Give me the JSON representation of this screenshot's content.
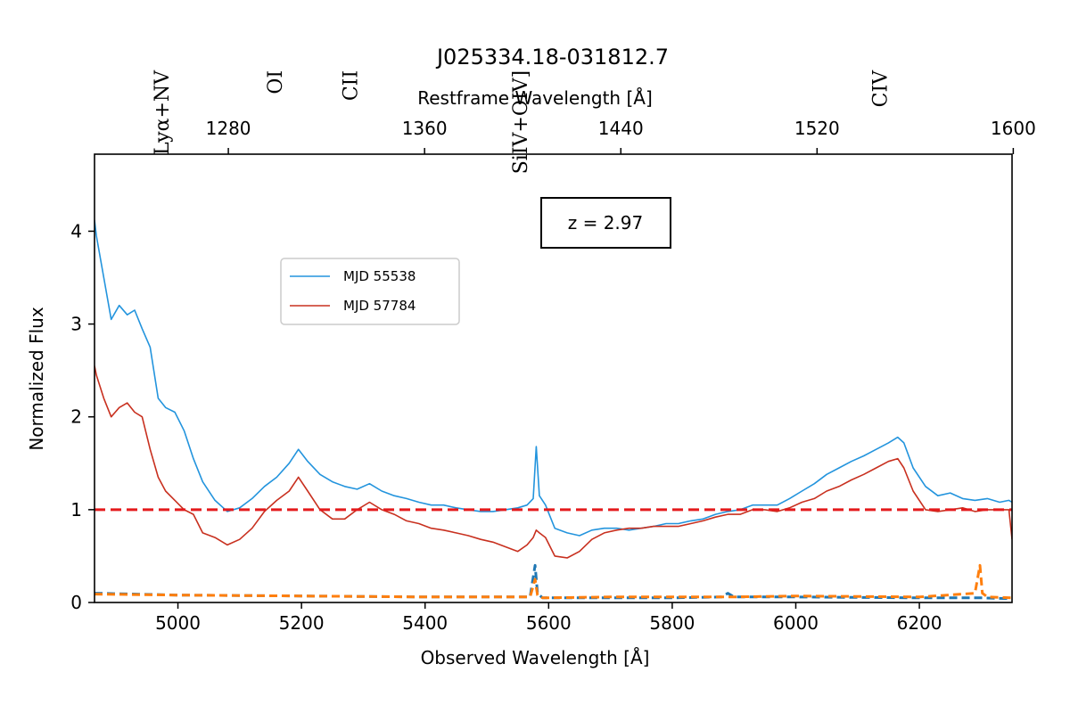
{
  "chart_data": {
    "type": "line",
    "title": "J025334.18-031812.7",
    "xlabel": "Observed Wavelength [Å]",
    "ylabel": "Normalized Flux",
    "top_xlabel": "Restframe Wavelength [Å]",
    "xlim": [
      4865,
      6350
    ],
    "ylim": [
      0,
      4.83
    ],
    "xticks": [
      5000,
      5200,
      5400,
      5600,
      5800,
      6000,
      6200
    ],
    "yticks": [
      0,
      1,
      2,
      3,
      4
    ],
    "top_xticks": [
      1280,
      1360,
      1440,
      1520,
      1600
    ],
    "redshift": 2.97,
    "redshift_label": "z = 2.97",
    "reference_line": {
      "y": 1,
      "color": "#e41a1c",
      "style": "dashed"
    },
    "line_labels": [
      {
        "text": "Lyα+NV",
        "x": 4985,
        "y": 4.6
      },
      {
        "text": "OI",
        "x": 5168,
        "y": 4.6
      },
      {
        "text": "CII",
        "x": 5290,
        "y": 4.6
      },
      {
        "text": "SiIV+OIV]",
        "x": 5565,
        "y": 4.6
      },
      {
        "text": "CIV",
        "x": 6147,
        "y": 4.6
      }
    ],
    "legend": {
      "position": "upper-center-left",
      "entries": [
        "MJD 55538",
        "MJD 57784"
      ]
    },
    "series": [
      {
        "name": "MJD 55538",
        "color": "#2394dd",
        "x": [
          4865,
          4868,
          4880,
          4892,
          4905,
          4918,
          4930,
          4942,
          4955,
          4968,
          4980,
          4995,
          5010,
          5025,
          5040,
          5060,
          5080,
          5100,
          5120,
          5140,
          5160,
          5180,
          5195,
          5210,
          5230,
          5250,
          5270,
          5290,
          5310,
          5330,
          5350,
          5370,
          5390,
          5410,
          5430,
          5450,
          5470,
          5490,
          5510,
          5530,
          5550,
          5565,
          5575,
          5580,
          5585,
          5595,
          5610,
          5630,
          5650,
          5670,
          5690,
          5710,
          5730,
          5750,
          5770,
          5790,
          5810,
          5830,
          5850,
          5870,
          5890,
          5910,
          5930,
          5950,
          5970,
          5990,
          6010,
          6030,
          6050,
          6070,
          6090,
          6110,
          6130,
          6150,
          6165,
          6175,
          6190,
          6210,
          6230,
          6250,
          6270,
          6290,
          6310,
          6330,
          6345,
          6350
        ],
        "y": [
          4.12,
          3.95,
          3.5,
          3.05,
          3.2,
          3.1,
          3.15,
          2.95,
          2.75,
          2.2,
          2.1,
          2.05,
          1.85,
          1.55,
          1.3,
          1.1,
          0.98,
          1.02,
          1.12,
          1.25,
          1.35,
          1.5,
          1.65,
          1.52,
          1.38,
          1.3,
          1.25,
          1.22,
          1.28,
          1.2,
          1.15,
          1.12,
          1.08,
          1.05,
          1.05,
          1.02,
          1.0,
          0.98,
          0.98,
          1.0,
          1.02,
          1.05,
          1.12,
          1.68,
          1.15,
          1.05,
          0.8,
          0.75,
          0.72,
          0.78,
          0.8,
          0.8,
          0.78,
          0.8,
          0.82,
          0.85,
          0.85,
          0.88,
          0.9,
          0.95,
          0.98,
          1.0,
          1.05,
          1.05,
          1.05,
          1.12,
          1.2,
          1.28,
          1.38,
          1.45,
          1.52,
          1.58,
          1.65,
          1.72,
          1.78,
          1.72,
          1.45,
          1.25,
          1.15,
          1.18,
          1.12,
          1.1,
          1.12,
          1.08,
          1.1,
          1.08
        ]
      },
      {
        "name": "MJD 57784",
        "color": "#c8301f",
        "x": [
          4865,
          4868,
          4880,
          4892,
          4905,
          4918,
          4930,
          4942,
          4955,
          4968,
          4980,
          4995,
          5010,
          5025,
          5040,
          5060,
          5080,
          5100,
          5120,
          5140,
          5160,
          5180,
          5195,
          5210,
          5230,
          5250,
          5270,
          5290,
          5310,
          5330,
          5350,
          5370,
          5390,
          5410,
          5430,
          5450,
          5470,
          5490,
          5510,
          5530,
          5550,
          5565,
          5575,
          5580,
          5585,
          5595,
          5610,
          5630,
          5650,
          5670,
          5690,
          5710,
          5730,
          5750,
          5770,
          5790,
          5810,
          5830,
          5850,
          5870,
          5890,
          5910,
          5930,
          5950,
          5970,
          5990,
          6010,
          6030,
          6050,
          6070,
          6090,
          6110,
          6130,
          6150,
          6165,
          6175,
          6190,
          6210,
          6230,
          6250,
          6270,
          6290,
          6310,
          6330,
          6345,
          6350
        ],
        "y": [
          2.55,
          2.45,
          2.2,
          2.0,
          2.1,
          2.15,
          2.05,
          2.0,
          1.65,
          1.35,
          1.2,
          1.1,
          1.0,
          0.95,
          0.75,
          0.7,
          0.62,
          0.68,
          0.8,
          0.98,
          1.1,
          1.2,
          1.35,
          1.2,
          1.0,
          0.9,
          0.9,
          1.0,
          1.08,
          1.0,
          0.95,
          0.88,
          0.85,
          0.8,
          0.78,
          0.75,
          0.72,
          0.68,
          0.65,
          0.6,
          0.55,
          0.62,
          0.7,
          0.78,
          0.75,
          0.7,
          0.5,
          0.48,
          0.55,
          0.68,
          0.75,
          0.78,
          0.8,
          0.8,
          0.82,
          0.82,
          0.82,
          0.85,
          0.88,
          0.92,
          0.95,
          0.95,
          1.0,
          1.0,
          0.98,
          1.02,
          1.08,
          1.12,
          1.2,
          1.25,
          1.32,
          1.38,
          1.45,
          1.52,
          1.55,
          1.45,
          1.2,
          1.0,
          0.98,
          1.0,
          1.02,
          0.98,
          1.0,
          1.0,
          1.0,
          0.68
        ]
      },
      {
        "name": "",
        "style": "dashed",
        "color": "#1f77b4",
        "x": [
          4865,
          5000,
          5200,
          5400,
          5500,
          5570,
          5578,
          5582,
          5590,
          5700,
          5800,
          5880,
          5890,
          5900,
          6000,
          6200,
          6300,
          6350
        ],
        "y": [
          0.1,
          0.08,
          0.07,
          0.06,
          0.06,
          0.06,
          0.4,
          0.1,
          0.05,
          0.05,
          0.05,
          0.06,
          0.1,
          0.06,
          0.06,
          0.05,
          0.05,
          0.04
        ]
      },
      {
        "name": "",
        "style": "dashed",
        "color": "#ff7f0e",
        "x": [
          4865,
          5000,
          5200,
          5400,
          5500,
          5570,
          5578,
          5582,
          5590,
          5700,
          5800,
          5900,
          6000,
          6200,
          6290,
          6298,
          6302,
          6310,
          6350
        ],
        "y": [
          0.09,
          0.08,
          0.07,
          0.06,
          0.06,
          0.06,
          0.25,
          0.08,
          0.05,
          0.06,
          0.06,
          0.06,
          0.07,
          0.06,
          0.1,
          0.4,
          0.1,
          0.06,
          0.05
        ]
      }
    ]
  }
}
